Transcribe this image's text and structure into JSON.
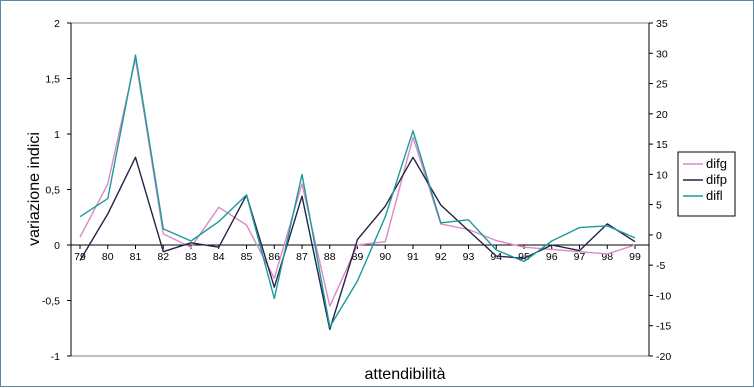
{
  "chart_data": {
    "type": "line",
    "xlabel": "attendibilità",
    "ylabel": "variazione indici",
    "categories": [
      "79",
      "80",
      "81",
      "82",
      "83",
      "84",
      "85",
      "86",
      "87",
      "88",
      "89",
      "90",
      "91",
      "92",
      "93",
      "94",
      "95",
      "96",
      "97",
      "98",
      "99"
    ],
    "y_left": {
      "ylim": [
        -1,
        2
      ],
      "ticks": [
        "-1",
        "-0,5",
        "0",
        "0,5",
        "1",
        "1,5",
        "2"
      ],
      "tick_values": [
        -1,
        -0.5,
        0,
        0.5,
        1,
        1.5,
        2
      ]
    },
    "y_right": {
      "ylim": [
        -20,
        35
      ],
      "ticks": [
        "-20",
        "-15",
        "-10",
        "-5",
        "0",
        "5",
        "10",
        "15",
        "20",
        "25",
        "30",
        "35"
      ],
      "tick_values": [
        -20,
        -15,
        -10,
        -5,
        0,
        5,
        10,
        15,
        20,
        25,
        30,
        35
      ]
    },
    "series": [
      {
        "name": "difg",
        "axis": "left",
        "color": "#d98bc4",
        "values": [
          0.07,
          0.55,
          1.68,
          0.1,
          -0.02,
          0.34,
          0.18,
          -0.3,
          0.55,
          -0.55,
          0.0,
          0.03,
          0.97,
          0.19,
          0.14,
          0.04,
          -0.02,
          -0.04,
          -0.06,
          -0.08,
          0.0
        ]
      },
      {
        "name": "difp",
        "axis": "left",
        "color": "#232347",
        "values": [
          -0.14,
          0.28,
          0.79,
          -0.06,
          0.02,
          -0.02,
          0.45,
          -0.38,
          0.44,
          -0.76,
          0.05,
          0.35,
          0.79,
          0.36,
          0.13,
          -0.1,
          -0.12,
          0.0,
          -0.05,
          0.19,
          0.03
        ]
      },
      {
        "name": "difl",
        "axis": "right",
        "color": "#1a9a9a",
        "values": [
          3.0,
          6.0,
          29.7,
          1.0,
          -1.0,
          2.2,
          6.6,
          -10.5,
          10.0,
          -15.2,
          -7.6,
          3.0,
          17.2,
          2.0,
          2.5,
          -2.5,
          -4.4,
          -1.0,
          1.2,
          1.5,
          -0.5
        ]
      }
    ],
    "grid": false,
    "legend_position": "right"
  }
}
